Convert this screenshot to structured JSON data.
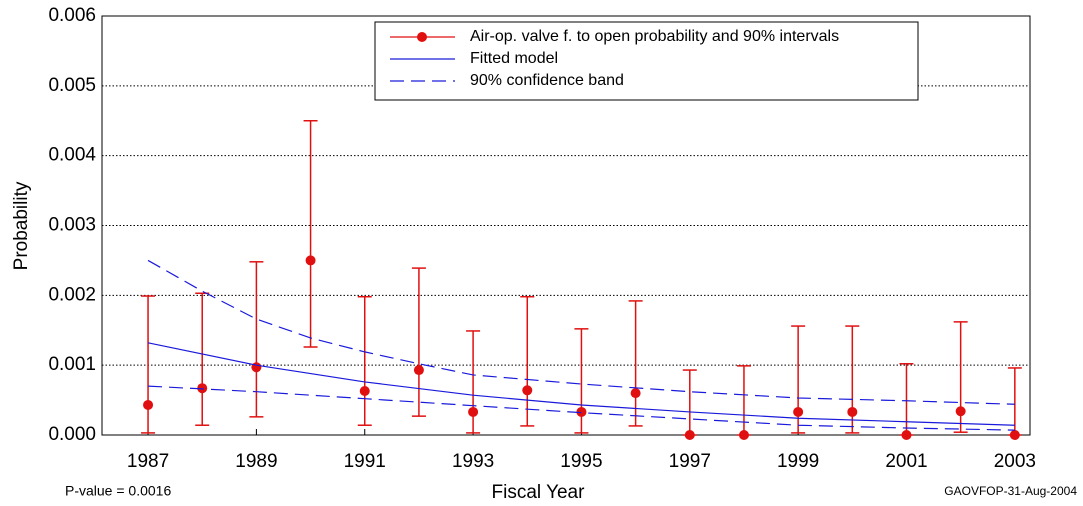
{
  "chart_data": {
    "type": "errorbar",
    "xlabel": "Fiscal Year",
    "ylabel": "Probability",
    "annotations": [
      "P-value = 0.0016",
      "GAOVFOP-31-Aug-2004"
    ],
    "x": [
      1987,
      1988,
      1989,
      1990,
      1991,
      1992,
      1993,
      1994,
      1995,
      1996,
      1997,
      1998,
      1999,
      2000,
      2001,
      2002,
      2003
    ],
    "series": [
      {
        "name": "Air-op. valve f. to open probability and 90% intervals",
        "color": "#e01010",
        "values": [
          0.00043,
          0.00067,
          0.00097,
          0.0025,
          0.00063,
          0.00093,
          0.00033,
          0.00064,
          0.00033,
          0.0006,
          0,
          0,
          0.00033,
          0.00033,
          0,
          0.00034,
          0
        ],
        "lower": [
          3e-05,
          0.00014,
          0.00026,
          0.00126,
          0.00014,
          0.00027,
          3e-05,
          0.00013,
          3e-05,
          0.00013,
          0,
          0,
          3e-05,
          3e-05,
          0,
          4e-05,
          0
        ],
        "upper": [
          0.00199,
          0.00203,
          0.00248,
          0.0045,
          0.00198,
          0.00239,
          0.00149,
          0.00198,
          0.00152,
          0.00192,
          0.00093,
          0.00099,
          0.00156,
          0.00156,
          0.00102,
          0.00162,
          0.00096
        ]
      },
      {
        "name": "Fitted model",
        "color": "#1a1adc",
        "x": [
          1987,
          1989,
          1991,
          1993,
          1995,
          1997,
          1999,
          2001,
          2003
        ],
        "values": [
          0.00132,
          0.001,
          0.00076,
          0.00057,
          0.00043,
          0.00033,
          0.00024,
          0.00019,
          0.00014
        ]
      },
      {
        "name": "90% confidence band",
        "color": "#1a1adc",
        "dashed": true,
        "x": [
          1987,
          1988,
          1989,
          1990,
          1991,
          1992,
          1993,
          1995,
          1997,
          1999,
          2001,
          2003
        ],
        "upper": [
          0.0025,
          0.00206,
          0.00166,
          0.00139,
          0.00119,
          0.00102,
          0.00086,
          0.00073,
          0.00062,
          0.00053,
          0.00049,
          0.00044
        ],
        "lower": [
          0.0007,
          0.00066,
          0.00062,
          0.00057,
          0.00052,
          0.00047,
          0.00042,
          0.00032,
          0.00023,
          0.00014,
          0.0001,
          7e-05
        ]
      }
    ],
    "xlim": [
      1986.15,
      2003.28
    ],
    "ylim": [
      0,
      0.006
    ],
    "xticks": [
      1987,
      1989,
      1991,
      1993,
      1995,
      1997,
      1999,
      2001,
      2003
    ],
    "yticks": [
      {
        "value": 0,
        "label": "0.000"
      },
      0.001,
      0.002,
      0.003,
      0.004,
      0.005,
      0.006
    ],
    "grid": true
  }
}
